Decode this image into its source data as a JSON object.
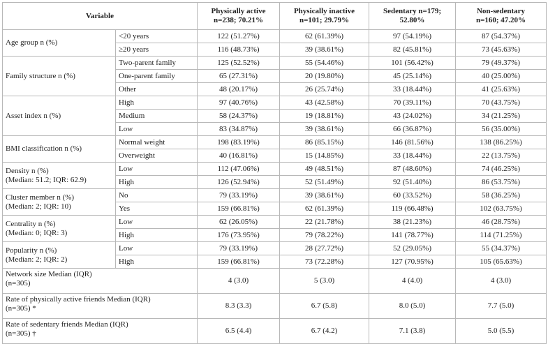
{
  "table": {
    "header": [
      {
        "lines": [
          "Variable"
        ]
      },
      {
        "lines": [
          "Physically active",
          "n=238; 70.21%"
        ]
      },
      {
        "lines": [
          "Physically inactive",
          "n=101; 29.79%"
        ]
      },
      {
        "lines": [
          "Sedentary n=179;",
          "52.80%"
        ]
      },
      {
        "lines": [
          "Non-sedentary",
          "n=160; 47.20%"
        ]
      }
    ],
    "groups": [
      {
        "lines": [
          "Age group n (%)"
        ],
        "rows": [
          {
            "sub": "<20 years",
            "cells": [
              "122 (51.27%)",
              "62 (61.39%)",
              "97 (54.19%)",
              "87 (54.37%)"
            ]
          },
          {
            "sub": "≥20 years",
            "cells": [
              "116 (48.73%)",
              "39 (38.61%)",
              "82 (45.81%)",
              "73 (45.63%)"
            ]
          }
        ]
      },
      {
        "lines": [
          "Family structure n (%)"
        ],
        "rows": [
          {
            "sub": "Two-parent family",
            "cells": [
              "125 (52.52%)",
              "55 (54.46%)",
              "101 (56.42%)",
              "79 (49.37%)"
            ]
          },
          {
            "sub": "One-parent family",
            "cells": [
              "65 (27.31%)",
              "20 (19.80%)",
              "45 (25.14%)",
              "40 (25.00%)"
            ]
          },
          {
            "sub": "Other",
            "cells": [
              "48 (20.17%)",
              "26 (25.74%)",
              "33 (18.44%)",
              "41 (25.63%)"
            ]
          }
        ]
      },
      {
        "lines": [
          "Asset index n (%)"
        ],
        "rows": [
          {
            "sub": "High",
            "cells": [
              "97 (40.76%)",
              "43 (42.58%)",
              "70 (39.11%)",
              "70 (43.75%)"
            ]
          },
          {
            "sub": "Medium",
            "cells": [
              "58 (24.37%)",
              "19 (18.81%)",
              "43 (24.02%)",
              "34 (21.25%)"
            ]
          },
          {
            "sub": "Low",
            "cells": [
              "83 (34.87%)",
              "39 (38.61%)",
              "66 (36.87%)",
              "56 (35.00%)"
            ]
          }
        ]
      },
      {
        "lines": [
          "BMI classification n (%)"
        ],
        "rows": [
          {
            "sub": "Normal weight",
            "cells": [
              "198 (83.19%)",
              "86 (85.15%)",
              "146 (81.56%)",
              "138 (86.25%)"
            ]
          },
          {
            "sub": "Overweight",
            "cells": [
              "40 (16.81%)",
              "15 (14.85%)",
              "33 (18.44%)",
              "22 (13.75%)"
            ]
          }
        ]
      },
      {
        "lines": [
          "Density n (%)",
          "(Median: 51.2; IQR: 62.9)"
        ],
        "rows": [
          {
            "sub": "Low",
            "cells": [
              "112 (47.06%)",
              "49 (48.51%)",
              "87 (48.60%)",
              "74 (46.25%)"
            ]
          },
          {
            "sub": "High",
            "cells": [
              "126 (52.94%)",
              "52 (51.49%)",
              "92 (51.40%)",
              "86 (53.75%)"
            ]
          }
        ]
      },
      {
        "lines": [
          "Cluster member n (%)",
          "(Median: 2; IQR: 10)"
        ],
        "rows": [
          {
            "sub": "No",
            "cells": [
              "79 (33.19%)",
              "39 (38.61%)",
              "60 (33.52%)",
              "58 (36.25%)"
            ]
          },
          {
            "sub": "Yes",
            "cells": [
              "159 (66.81%)",
              "62 (61.39%)",
              "119 (66.48%)",
              "102 (63.75%)"
            ]
          }
        ]
      },
      {
        "lines": [
          "Centrality n (%)",
          "(Median: 0; IQR: 3)"
        ],
        "rows": [
          {
            "sub": "Low",
            "cells": [
              "62 (26.05%)",
              "22 (21.78%)",
              "38 (21.23%)",
              "46 (28.75%)"
            ]
          },
          {
            "sub": "High",
            "cells": [
              "176 (73.95%)",
              "79 (78.22%)",
              "141 (78.77%)",
              "114 (71.25%)"
            ]
          }
        ]
      },
      {
        "lines": [
          "Popularity n (%)",
          "(Median: 2; IQR: 2)"
        ],
        "rows": [
          {
            "sub": "Low",
            "cells": [
              "79 (33.19%)",
              "28 (27.72%)",
              "52 (29.05%)",
              "55 (34.37%)"
            ]
          },
          {
            "sub": "High",
            "cells": [
              "159 (66.81%)",
              "73 (72.28%)",
              "127 (70.95%)",
              "105 (65.63%)"
            ]
          }
        ]
      },
      {
        "lines": [
          "Network size Median (IQR)",
          "(n=305)"
        ],
        "rows": [
          {
            "cells": [
              "4 (3.0)",
              "5 (3.0)",
              "4 (4.0)",
              "4 (3.0)"
            ]
          }
        ]
      },
      {
        "lines": [
          "Rate of physically active friends Median (IQR)",
          "(n=305) *"
        ],
        "rows": [
          {
            "cells": [
              "8.3 (3.3)",
              "6.7 (5.8)",
              "8.0 (5.0)",
              "7.7 (5.0)"
            ]
          }
        ]
      },
      {
        "lines": [
          "Rate of sedentary friends Median (IQR)",
          "(n=305) †"
        ],
        "rows": [
          {
            "cells": [
              "6.5 (4.4)",
              "6.7 (4.2)",
              "7.1 (3.8)",
              "5.0 (5.5)"
            ]
          }
        ]
      }
    ]
  }
}
